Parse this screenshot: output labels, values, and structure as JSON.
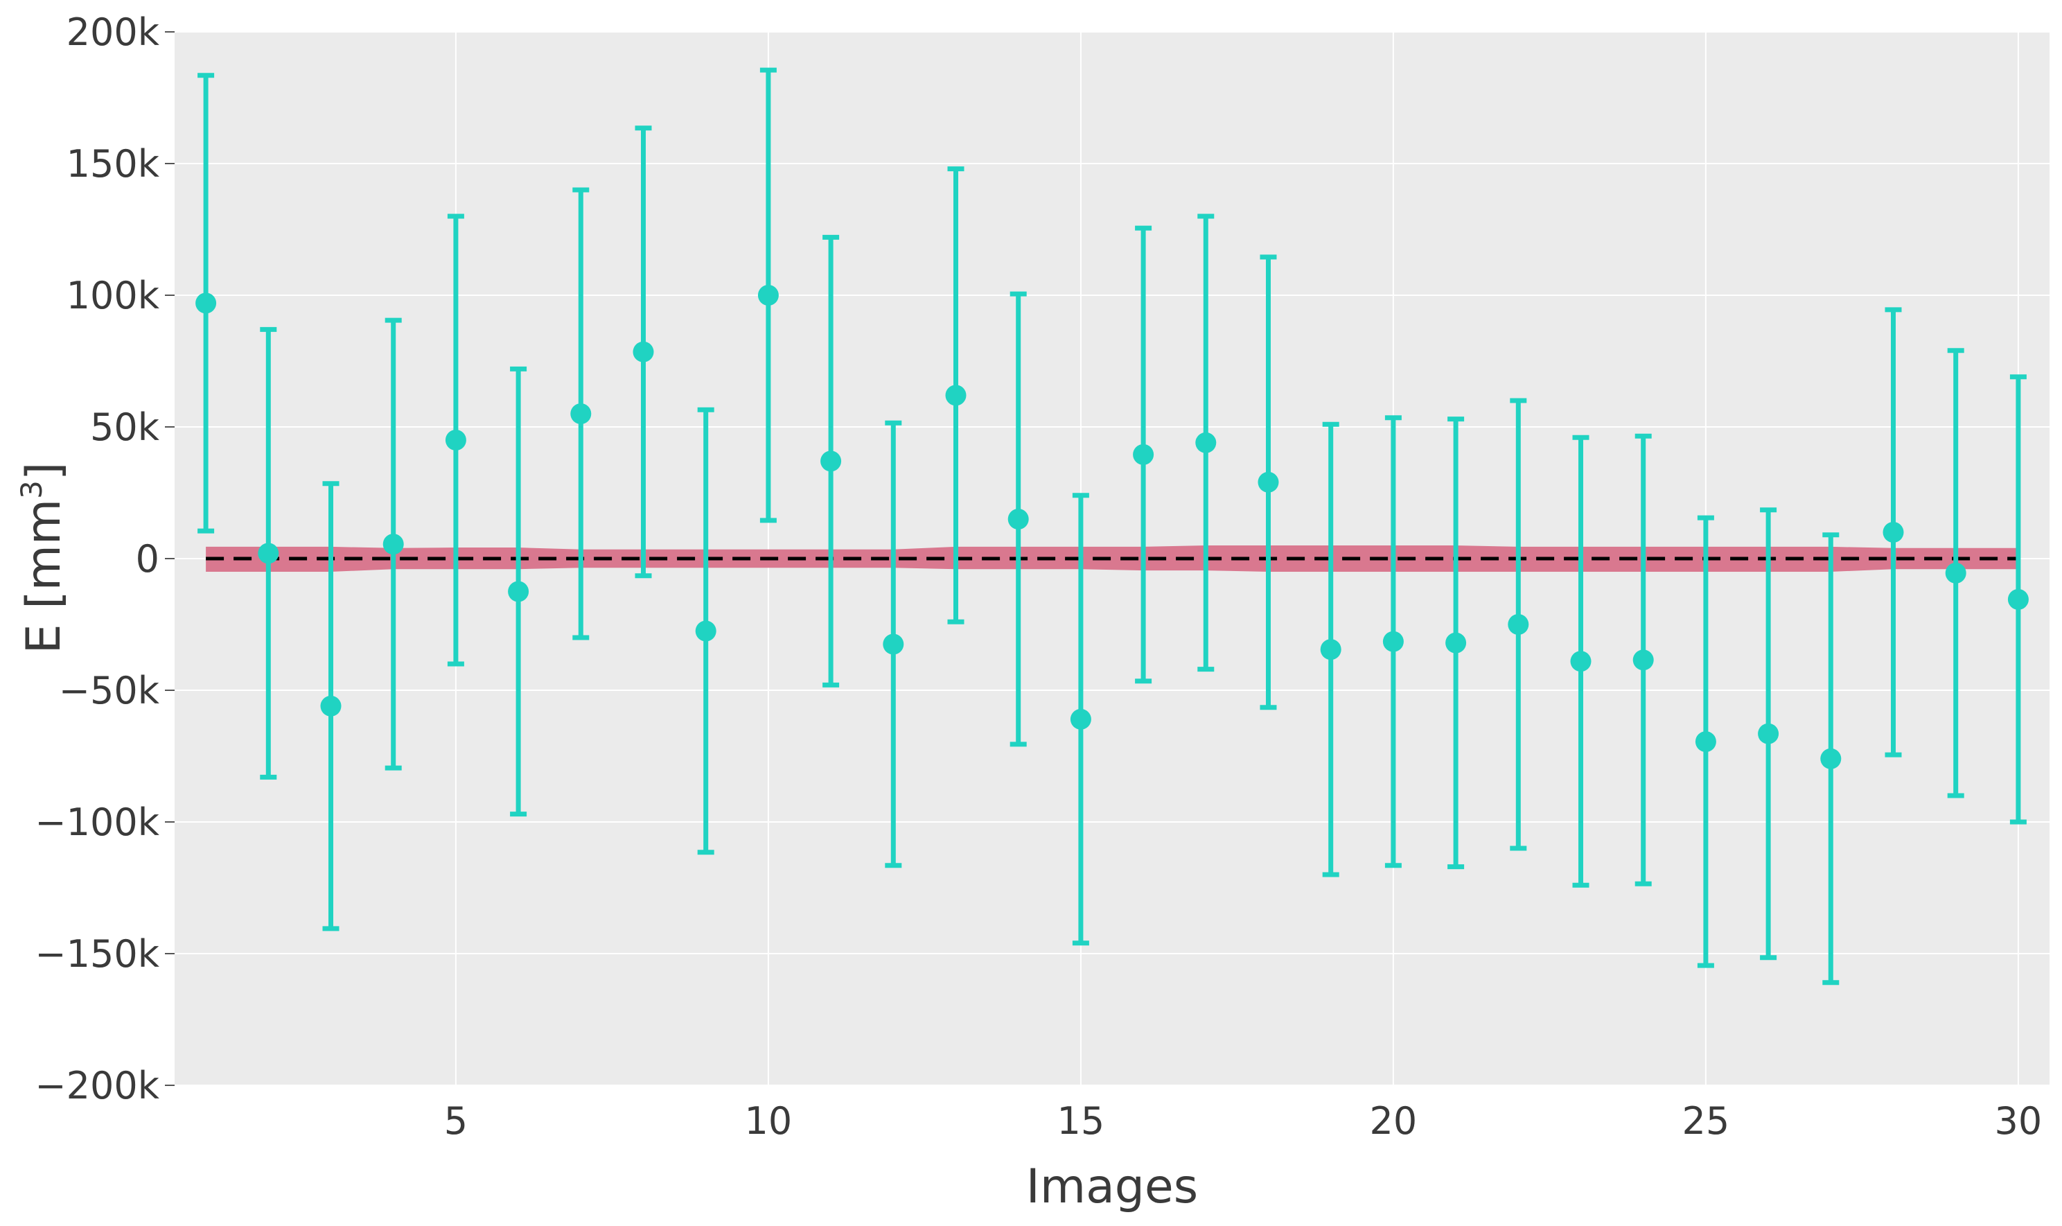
{
  "chart_data": {
    "type": "scatter",
    "title": "",
    "xlabel": "Images",
    "ylabel": {
      "main": "E [mm",
      "sup": "3",
      "end": "]"
    },
    "xlim": [
      0.5,
      30.5
    ],
    "ylim": [
      -200000,
      200000
    ],
    "xticks": [
      5,
      10,
      15,
      20,
      25,
      30
    ],
    "xtick_labels": [
      "5",
      "10",
      "15",
      "20",
      "25",
      "30"
    ],
    "yticks": [
      -200000,
      -150000,
      -100000,
      -50000,
      0,
      50000,
      100000,
      150000,
      200000
    ],
    "ytick_labels": [
      "−200k",
      "−150k",
      "−100k",
      "−50k",
      "0",
      "50k",
      "100k",
      "150k",
      "200k"
    ],
    "grid": true,
    "legend": "none",
    "background": "#ebebeb",
    "colors": {
      "points": "#20d3c2",
      "band": "#d9788f",
      "reference_line": "#000000"
    },
    "reference_line": {
      "y": 0,
      "style": "dashed"
    },
    "band": {
      "x": [
        1,
        2,
        3,
        4,
        5,
        6,
        7,
        8,
        9,
        10,
        11,
        12,
        13,
        14,
        15,
        16,
        17,
        18,
        19,
        20,
        21,
        22,
        23,
        24,
        25,
        26,
        27,
        28,
        29,
        30
      ],
      "upper": [
        4500,
        4500,
        4500,
        4000,
        4200,
        4200,
        3500,
        3500,
        3500,
        3500,
        3500,
        3500,
        4500,
        4500,
        4500,
        4500,
        5000,
        5000,
        5000,
        5000,
        5000,
        4500,
        4500,
        4500,
        4500,
        4500,
        4500,
        4000,
        4000,
        4000
      ],
      "lower": [
        -5000,
        -5000,
        -5000,
        -4000,
        -4000,
        -4000,
        -3500,
        -3500,
        -3500,
        -3500,
        -3500,
        -3500,
        -4000,
        -4000,
        -4000,
        -4500,
        -4500,
        -5000,
        -5000,
        -5000,
        -5000,
        -5000,
        -5000,
        -5000,
        -5000,
        -5000,
        -5000,
        -4000,
        -4000,
        -4000
      ]
    },
    "series": [
      {
        "x": [
          1,
          2,
          3,
          4,
          5,
          6,
          7,
          8,
          9,
          10,
          11,
          12,
          13,
          14,
          15,
          16,
          17,
          18,
          19,
          20,
          21,
          22,
          23,
          24,
          25,
          26,
          27,
          28,
          29,
          30
        ],
        "y": [
          97000,
          2000,
          -56000,
          5500,
          45000,
          -12500,
          55000,
          78500,
          -27500,
          100000,
          37000,
          -32500,
          62000,
          15000,
          -61000,
          39500,
          44000,
          29000,
          -34500,
          -31500,
          -32000,
          -25000,
          -39000,
          -38500,
          -69500,
          -66500,
          -76000,
          10000,
          -5500,
          -15500
        ],
        "err": [
          86500,
          85000,
          84500,
          85000,
          85000,
          84500,
          85000,
          85000,
          84000,
          85500,
          85000,
          84000,
          86000,
          85500,
          85000,
          86000,
          86000,
          85500,
          85500,
          85000,
          85000,
          85000,
          85000,
          85000,
          85000,
          85000,
          85000,
          84500,
          84500,
          84500
        ]
      }
    ]
  }
}
